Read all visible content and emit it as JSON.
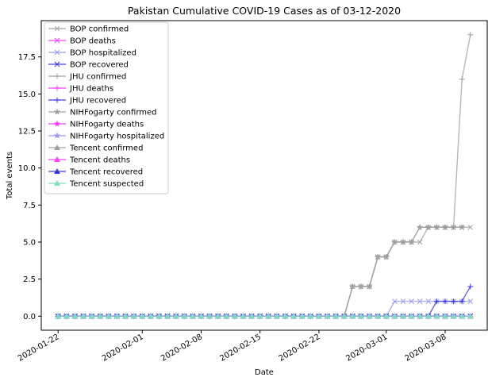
{
  "chart_data": {
    "type": "line",
    "title": "Pakistan Cumulative COVID-19 Cases as of 03-12-2020",
    "xlabel": "Date",
    "ylabel": "Total events",
    "x_start": "2020-01-22",
    "x_end": "2020-03-11",
    "xlim": [
      "2020-01-20",
      "2020-03-13"
    ],
    "ylim": [
      -0.95,
      19.95
    ],
    "x_ticks": [
      "2020-01-22",
      "2020-02-01",
      "2020-02-08",
      "2020-02-15",
      "2020-02-22",
      "2020-03-01",
      "2020-03-08"
    ],
    "y_ticks": [
      "0.0",
      "2.5",
      "5.0",
      "7.5",
      "10.0",
      "12.5",
      "15.0",
      "17.5"
    ],
    "y_tick_values": [
      0,
      2.5,
      5,
      7.5,
      10,
      12.5,
      15,
      17.5
    ],
    "legend_position": "top-left",
    "series": [
      {
        "name": "BOP confirmed",
        "color": "#a0a0a0",
        "marker": "x",
        "values": [
          [
            0,
            0
          ],
          [
            0,
            "2020-02-25"
          ],
          [
            2,
            "2020-02-26"
          ],
          [
            2,
            "2020-02-28"
          ],
          [
            4,
            "2020-02-29"
          ],
          [
            4,
            "2020-03-01"
          ],
          [
            5,
            "2020-03-02"
          ],
          [
            5,
            "2020-03-05"
          ],
          [
            6,
            "2020-03-06"
          ],
          [
            6,
            "2020-03-11"
          ]
        ]
      },
      {
        "name": "BOP deaths",
        "color": "#ff3dff",
        "marker": "x",
        "values": [
          [
            0,
            0
          ],
          [
            0,
            "2020-03-11"
          ]
        ]
      },
      {
        "name": "BOP hospitalized",
        "color": "#9a9af2",
        "marker": "x",
        "values": [
          [
            0,
            0
          ],
          [
            0,
            "2020-03-01"
          ],
          [
            1,
            "2020-03-02"
          ],
          [
            1,
            "2020-03-11"
          ]
        ]
      },
      {
        "name": "BOP recovered",
        "color": "#3535e0",
        "marker": "x",
        "values": [
          [
            0,
            0
          ],
          [
            0,
            "2020-03-11"
          ]
        ]
      },
      {
        "name": "JHU confirmed",
        "color": "#a0a0a0",
        "marker": "+",
        "values": [
          [
            0,
            0
          ],
          [
            0,
            "2020-02-25"
          ],
          [
            2,
            "2020-02-26"
          ],
          [
            2,
            "2020-02-28"
          ],
          [
            4,
            "2020-02-29"
          ],
          [
            4,
            "2020-03-01"
          ],
          [
            5,
            "2020-03-02"
          ],
          [
            5,
            "2020-03-04"
          ],
          [
            6,
            "2020-03-05"
          ],
          [
            6,
            "2020-03-09"
          ],
          [
            16,
            "2020-03-10"
          ],
          [
            19,
            "2020-03-11"
          ]
        ]
      },
      {
        "name": "JHU deaths",
        "color": "#ff3dff",
        "marker": "+",
        "values": [
          [
            0,
            0
          ],
          [
            0,
            "2020-03-11"
          ]
        ]
      },
      {
        "name": "JHU recovered",
        "color": "#3535e0",
        "marker": "+",
        "values": [
          [
            0,
            0
          ],
          [
            0,
            "2020-03-06"
          ],
          [
            1,
            "2020-03-07"
          ],
          [
            1,
            "2020-03-10"
          ],
          [
            2,
            "2020-03-11"
          ]
        ]
      },
      {
        "name": "NIHFogarty confirmed",
        "color": "#a0a0a0",
        "marker": "star",
        "values": [
          [
            0,
            0
          ],
          [
            0,
            "2020-02-25"
          ],
          [
            2,
            "2020-02-26"
          ],
          [
            2,
            "2020-02-28"
          ],
          [
            4,
            "2020-02-29"
          ],
          [
            4,
            "2020-03-01"
          ],
          [
            5,
            "2020-03-02"
          ],
          [
            5,
            "2020-03-04"
          ],
          [
            6,
            "2020-03-05"
          ],
          [
            6,
            "2020-03-10"
          ]
        ]
      },
      {
        "name": "NIHFogarty deaths",
        "color": "#ff3dff",
        "marker": "star",
        "values": [
          [
            0,
            0
          ],
          [
            0,
            "2020-03-10"
          ]
        ]
      },
      {
        "name": "NIHFogarty hospitalized",
        "color": "#9a9af2",
        "marker": "star",
        "values": [
          [
            0,
            0
          ],
          [
            0,
            "2020-03-10"
          ]
        ]
      },
      {
        "name": "Tencent confirmed",
        "color": "#a0a0a0",
        "marker": "triangle",
        "values": [
          [
            0,
            0
          ],
          [
            0,
            "2020-03-11"
          ]
        ]
      },
      {
        "name": "Tencent deaths",
        "color": "#ff3dff",
        "marker": "triangle",
        "values": [
          [
            0,
            0
          ],
          [
            0,
            "2020-03-11"
          ]
        ]
      },
      {
        "name": "Tencent recovered",
        "color": "#3535e0",
        "marker": "triangle",
        "values": [
          [
            0,
            0
          ],
          [
            0,
            "2020-03-11"
          ]
        ]
      },
      {
        "name": "Tencent suspected",
        "color": "#7fdcc0",
        "marker": "triangle",
        "values": [
          [
            0,
            0
          ],
          [
            0,
            "2020-03-11"
          ]
        ]
      }
    ]
  }
}
